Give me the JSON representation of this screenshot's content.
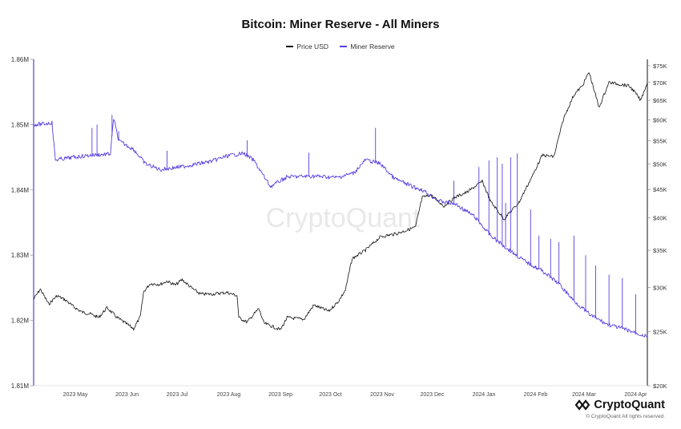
{
  "chart_data": {
    "type": "line",
    "title": "Bitcoin: Miner Reserve - All Miners",
    "legend": [
      "Price USD",
      "Miner Reserve"
    ],
    "legend_placement": "top-center",
    "watermark": "CryptoQuant",
    "x_tick_labels": [
      "2023 May",
      "2023 Jun",
      "2023 Jul",
      "2023 Aug",
      "2023 Sep",
      "2023 Oct",
      "2023 Nov",
      "2023 Dec",
      "2024 Jan",
      "2024 Feb",
      "2024 Mar",
      "2024 Apr"
    ],
    "xlim": [
      "2023-04-16",
      "2024-04-18"
    ],
    "left_axis": {
      "ylim": [
        1810000,
        1860000
      ],
      "tick_values": [
        1810000,
        1820000,
        1830000,
        1840000,
        1850000,
        1860000
      ],
      "tick_labels": [
        "1.81M",
        "1.82M",
        "1.83M",
        "1.84M",
        "1.85M",
        "1.86M"
      ]
    },
    "right_axis": {
      "scale": "log",
      "ylim": [
        20000,
        77000
      ],
      "tick_values": [
        20000,
        25000,
        30000,
        35000,
        40000,
        45000,
        50000,
        55000,
        60000,
        65000,
        70000,
        75000
      ],
      "tick_labels": [
        "$20K",
        "$25K",
        "$30K",
        "$35K",
        "$40K",
        "$45K",
        "$50K",
        "$55K",
        "$60K",
        "$65K",
        "$70K",
        "$75K"
      ]
    },
    "grid": false,
    "series": [
      {
        "name": "Price USD",
        "axis": "right",
        "color": "#111111",
        "points": [
          [
            "2023-04-16",
            28600
          ],
          [
            "2023-04-20",
            29800
          ],
          [
            "2023-04-25",
            28000
          ],
          [
            "2023-04-30",
            29000
          ],
          [
            "2023-05-05",
            28500
          ],
          [
            "2023-05-10",
            27700
          ],
          [
            "2023-05-15",
            27100
          ],
          [
            "2023-05-20",
            26900
          ],
          [
            "2023-05-25",
            26500
          ],
          [
            "2023-05-30",
            27600
          ],
          [
            "2023-06-05",
            26500
          ],
          [
            "2023-06-10",
            25900
          ],
          [
            "2023-06-15",
            25300
          ],
          [
            "2023-06-19",
            26600
          ],
          [
            "2023-06-21",
            29500
          ],
          [
            "2023-06-25",
            30500
          ],
          [
            "2023-07-01",
            30400
          ],
          [
            "2023-07-05",
            30800
          ],
          [
            "2023-07-10",
            30300
          ],
          [
            "2023-07-14",
            31000
          ],
          [
            "2023-07-20",
            29900
          ],
          [
            "2023-07-25",
            29200
          ],
          [
            "2023-08-01",
            29200
          ],
          [
            "2023-08-10",
            29400
          ],
          [
            "2023-08-16",
            29000
          ],
          [
            "2023-08-17",
            26500
          ],
          [
            "2023-08-22",
            26000
          ],
          [
            "2023-08-29",
            27500
          ],
          [
            "2023-09-01",
            25900
          ],
          [
            "2023-09-11",
            25200
          ],
          [
            "2023-09-15",
            26500
          ],
          [
            "2023-09-25",
            26300
          ],
          [
            "2023-10-01",
            27900
          ],
          [
            "2023-10-10",
            27200
          ],
          [
            "2023-10-16",
            28400
          ],
          [
            "2023-10-20",
            29700
          ],
          [
            "2023-10-24",
            33800
          ],
          [
            "2023-11-01",
            35000
          ],
          [
            "2023-11-10",
            37000
          ],
          [
            "2023-11-20",
            37500
          ],
          [
            "2023-12-01",
            38500
          ],
          [
            "2023-12-05",
            43500
          ],
          [
            "2023-12-10",
            44000
          ],
          [
            "2023-12-18",
            42000
          ],
          [
            "2023-12-25",
            43600
          ],
          [
            "2024-01-01",
            44500
          ],
          [
            "2024-01-10",
            46500
          ],
          [
            "2024-01-15",
            42800
          ],
          [
            "2024-01-23",
            39800
          ],
          [
            "2024-02-01",
            42600
          ],
          [
            "2024-02-09",
            47500
          ],
          [
            "2024-02-15",
            51800
          ],
          [
            "2024-02-22",
            51500
          ],
          [
            "2024-02-28",
            60500
          ],
          [
            "2024-03-05",
            66500
          ],
          [
            "2024-03-10",
            69000
          ],
          [
            "2024-03-14",
            73000
          ],
          [
            "2024-03-20",
            63000
          ],
          [
            "2024-03-26",
            70000
          ],
          [
            "2024-04-01",
            69500
          ],
          [
            "2024-04-07",
            69000
          ],
          [
            "2024-04-10",
            67500
          ],
          [
            "2024-04-14",
            65000
          ],
          [
            "2024-04-18",
            70000
          ]
        ]
      },
      {
        "name": "Miner Reserve",
        "axis": "left",
        "color": "#5b3ee0",
        "points": [
          [
            "2023-04-16",
            1850000
          ],
          [
            "2023-04-22",
            1850100
          ],
          [
            "2023-04-27",
            1850300
          ],
          [
            "2023-04-29",
            1844600
          ],
          [
            "2023-05-10",
            1845000
          ],
          [
            "2023-05-20",
            1845300
          ],
          [
            "2023-06-01",
            1845500
          ],
          [
            "2023-06-03",
            1851000
          ],
          [
            "2023-06-06",
            1847500
          ],
          [
            "2023-06-15",
            1846200
          ],
          [
            "2023-06-22",
            1844000
          ],
          [
            "2023-07-01",
            1843100
          ],
          [
            "2023-07-15",
            1843600
          ],
          [
            "2023-08-01",
            1844400
          ],
          [
            "2023-08-10",
            1845200
          ],
          [
            "2023-08-20",
            1845600
          ],
          [
            "2023-08-26",
            1844500
          ],
          [
            "2023-09-05",
            1840500
          ],
          [
            "2023-09-15",
            1842000
          ],
          [
            "2023-10-01",
            1842100
          ],
          [
            "2023-10-15",
            1841900
          ],
          [
            "2023-10-25",
            1842600
          ],
          [
            "2023-11-01",
            1844600
          ],
          [
            "2023-11-10",
            1844000
          ],
          [
            "2023-11-18",
            1841800
          ],
          [
            "2023-11-30",
            1840400
          ],
          [
            "2023-12-05",
            1840000
          ],
          [
            "2023-12-15",
            1838300
          ],
          [
            "2023-12-25",
            1837800
          ],
          [
            "2024-01-05",
            1836000
          ],
          [
            "2024-01-15",
            1833000
          ],
          [
            "2024-01-25",
            1831000
          ],
          [
            "2024-02-05",
            1829000
          ],
          [
            "2024-02-15",
            1827600
          ],
          [
            "2024-02-25",
            1825600
          ],
          [
            "2024-03-05",
            1823000
          ],
          [
            "2024-03-15",
            1820800
          ],
          [
            "2024-03-25",
            1819400
          ],
          [
            "2024-04-05",
            1818600
          ],
          [
            "2024-04-18",
            1817500
          ]
        ],
        "spikes": [
          [
            "2023-05-21",
            1849500
          ],
          [
            "2023-05-24",
            1850000
          ],
          [
            "2023-06-02",
            1851500
          ],
          [
            "2023-06-06",
            1849000
          ],
          [
            "2023-07-05",
            1846000
          ],
          [
            "2023-08-22",
            1847600
          ],
          [
            "2023-09-28",
            1845700
          ],
          [
            "2023-11-07",
            1849500
          ],
          [
            "2023-12-24",
            1841400
          ],
          [
            "2024-01-08",
            1843500
          ],
          [
            "2024-01-14",
            1844500
          ],
          [
            "2024-01-19",
            1845000
          ],
          [
            "2024-01-22",
            1844000
          ],
          [
            "2024-01-24",
            1838000
          ],
          [
            "2024-01-27",
            1845000
          ],
          [
            "2024-01-31",
            1845600
          ],
          [
            "2024-02-08",
            1837000
          ],
          [
            "2024-02-13",
            1833000
          ],
          [
            "2024-02-20",
            1832500
          ],
          [
            "2024-02-25",
            1832000
          ],
          [
            "2024-03-05",
            1833000
          ],
          [
            "2024-03-12",
            1830000
          ],
          [
            "2024-03-18",
            1828400
          ],
          [
            "2024-03-26",
            1827000
          ],
          [
            "2024-04-03",
            1826500
          ],
          [
            "2024-04-11",
            1824000
          ]
        ]
      }
    ]
  },
  "brand": {
    "name": "CryptoQuant",
    "copyright": "© CryptoQuant All rights reserved."
  }
}
